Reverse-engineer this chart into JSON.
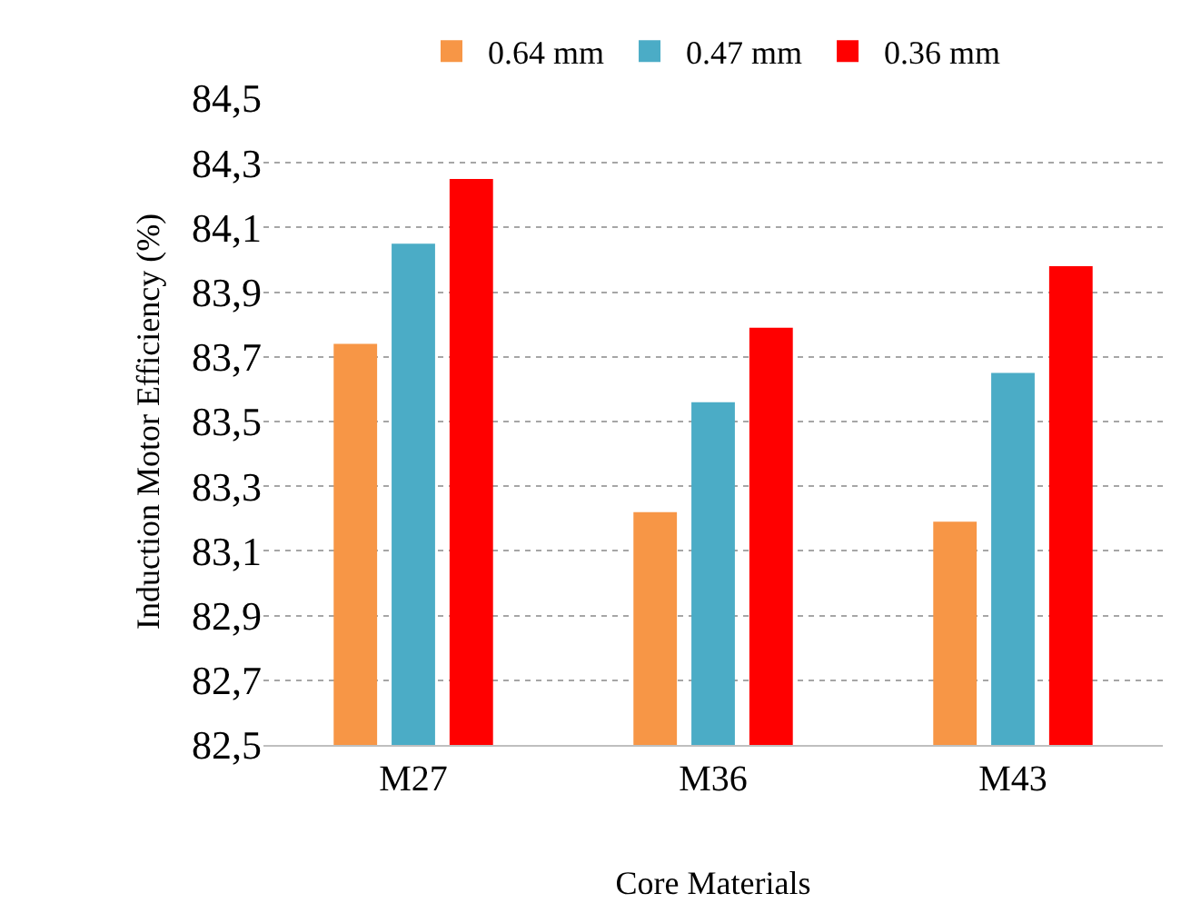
{
  "chart_data": {
    "type": "bar",
    "xlabel": "Core Materials",
    "ylabel": "Induction Motor Efficiency (%)",
    "categories": [
      "M27",
      "M36",
      "M43"
    ],
    "series": [
      {
        "name": "0.64 mm",
        "color": "#f79646",
        "values": [
          83.74,
          83.22,
          83.19
        ]
      },
      {
        "name": "0.47 mm",
        "color": "#4bacc6",
        "values": [
          84.05,
          83.56,
          83.65
        ]
      },
      {
        "name": "0.36 mm",
        "color": "#ff0000",
        "values": [
          84.25,
          83.79,
          83.98
        ]
      }
    ],
    "ylim": [
      82.5,
      84.5
    ],
    "yticks": [
      {
        "value": 82.5,
        "label": "82,5"
      },
      {
        "value": 82.7,
        "label": "82,7"
      },
      {
        "value": 82.9,
        "label": "82,9"
      },
      {
        "value": 83.1,
        "label": "83,1"
      },
      {
        "value": 83.3,
        "label": "83,3"
      },
      {
        "value": 83.5,
        "label": "83,5"
      },
      {
        "value": 83.7,
        "label": "83,7"
      },
      {
        "value": 83.9,
        "label": "83,9"
      },
      {
        "value": 84.1,
        "label": "84,1"
      },
      {
        "value": 84.3,
        "label": "84,3"
      },
      {
        "value": 84.5,
        "label": "84,5"
      }
    ],
    "grid": "y",
    "legend": "top"
  }
}
